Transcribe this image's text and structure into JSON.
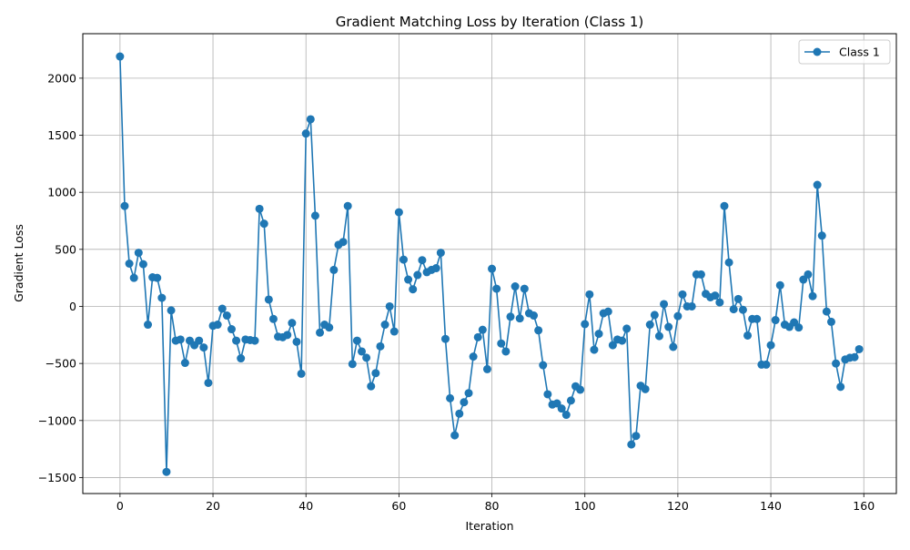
{
  "chart_data": {
    "type": "line",
    "title": "Gradient Matching Loss by Iteration (Class 1)",
    "xlabel": "Iteration",
    "ylabel": "Gradient Loss",
    "xlim": [
      -8,
      167
    ],
    "ylim": [
      -1640,
      2390
    ],
    "xticks": [
      0,
      20,
      40,
      60,
      80,
      100,
      120,
      140,
      160
    ],
    "yticks": [
      -1500,
      -1000,
      -500,
      0,
      500,
      1000,
      1500,
      2000
    ],
    "xtick_labels": [
      "0",
      "20",
      "40",
      "60",
      "80",
      "100",
      "120",
      "140",
      "160"
    ],
    "ytick_labels": [
      "−1500",
      "−1000",
      "−500",
      "0",
      "500",
      "1000",
      "1500",
      "2000"
    ],
    "grid": true,
    "legend": {
      "placement": "top-right"
    },
    "series": [
      {
        "name": "Class 1",
        "color": "#1f77b4",
        "marker": "circle",
        "x": [
          0,
          1,
          2,
          3,
          4,
          5,
          6,
          7,
          8,
          9,
          10,
          11,
          12,
          13,
          14,
          15,
          16,
          17,
          18,
          19,
          20,
          21,
          22,
          23,
          24,
          25,
          26,
          27,
          28,
          29,
          30,
          31,
          32,
          33,
          34,
          35,
          36,
          37,
          38,
          39,
          40,
          41,
          42,
          43,
          44,
          45,
          46,
          47,
          48,
          49,
          50,
          51,
          52,
          53,
          54,
          55,
          56,
          57,
          58,
          59,
          60,
          61,
          62,
          63,
          64,
          65,
          66,
          67,
          68,
          69,
          70,
          71,
          72,
          73,
          74,
          75,
          76,
          77,
          78,
          79,
          80,
          81,
          82,
          83,
          84,
          85,
          86,
          87,
          88,
          89,
          90,
          91,
          92,
          93,
          94,
          95,
          96,
          97,
          98,
          99,
          100,
          101,
          102,
          103,
          104,
          105,
          106,
          107,
          108,
          109,
          110,
          111,
          112,
          113,
          114,
          115,
          116,
          117,
          118,
          119,
          120,
          121,
          122,
          123,
          124,
          125,
          126,
          127,
          128,
          129,
          130,
          131,
          132,
          133,
          134,
          135,
          136,
          137,
          138,
          139,
          140,
          141,
          142,
          143,
          144,
          145,
          146,
          147,
          148,
          149,
          150,
          151,
          152,
          153,
          154,
          155,
          156,
          157,
          158,
          159
        ],
        "values": [
          2190,
          880,
          375,
          250,
          470,
          370,
          -160,
          255,
          250,
          75,
          -1450,
          -35,
          -300,
          -290,
          -495,
          -300,
          -340,
          -300,
          -360,
          -670,
          -170,
          -160,
          -20,
          -80,
          -200,
          -300,
          -455,
          -290,
          -295,
          -300,
          855,
          725,
          60,
          -110,
          -265,
          -270,
          -250,
          -145,
          -310,
          -590,
          1515,
          1640,
          795,
          -230,
          -160,
          -185,
          320,
          540,
          565,
          880,
          -505,
          -300,
          -395,
          -450,
          -700,
          -585,
          -350,
          -160,
          0,
          -220,
          825,
          410,
          235,
          150,
          275,
          405,
          300,
          320,
          335,
          470,
          -285,
          -805,
          -1130,
          -940,
          -840,
          -760,
          -440,
          -270,
          -205,
          -550,
          330,
          155,
          -325,
          -395,
          -90,
          175,
          -105,
          155,
          -60,
          -80,
          -210,
          -515,
          -770,
          -860,
          -850,
          -895,
          -950,
          -825,
          -700,
          -730,
          -155,
          105,
          -380,
          -240,
          -60,
          -45,
          -340,
          -290,
          -300,
          -195,
          -1210,
          -1135,
          -695,
          -725,
          -160,
          -75,
          -260,
          20,
          -180,
          -355,
          -85,
          105,
          0,
          0,
          280,
          280,
          110,
          80,
          95,
          35,
          880,
          385,
          -25,
          65,
          -30,
          -255,
          -110,
          -110,
          -510,
          -510,
          -340,
          -120,
          185,
          -160,
          -180,
          -140,
          -185,
          235,
          280,
          90,
          1065,
          620,
          -45,
          -135,
          -500,
          -705,
          -465,
          -450,
          -445,
          -375
        ]
      }
    ]
  }
}
